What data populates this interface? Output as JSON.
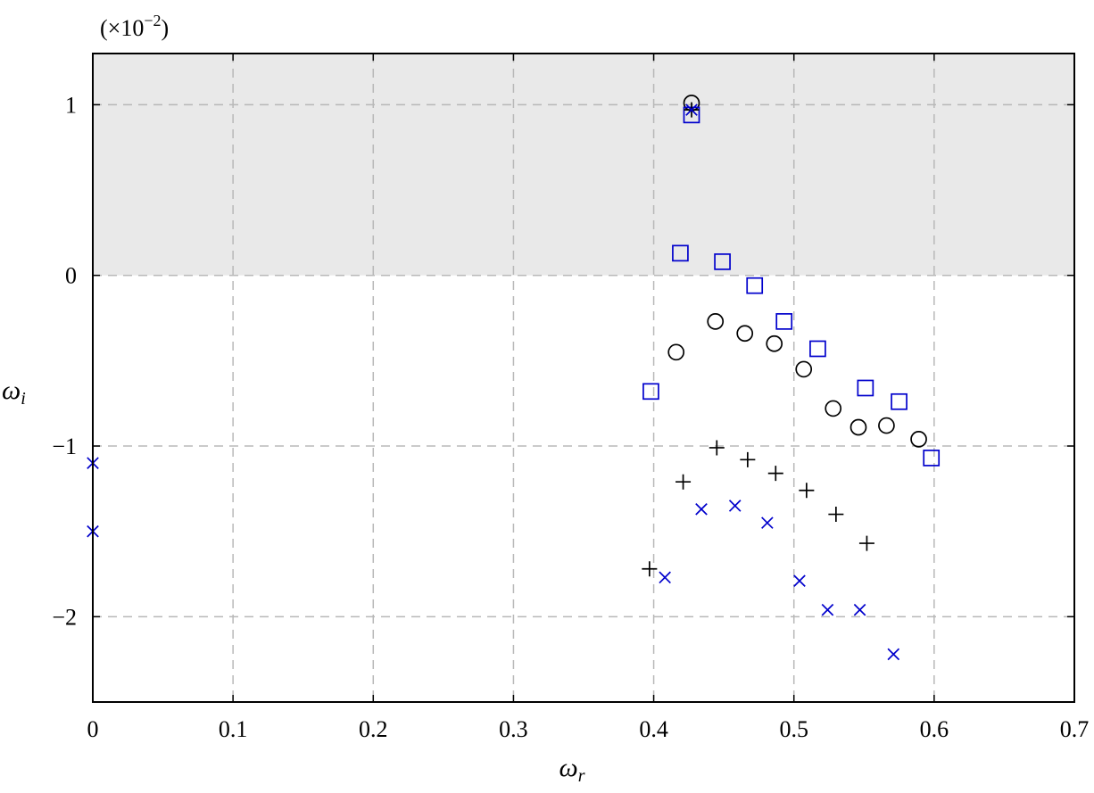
{
  "chart_data": {
    "type": "scatter",
    "xlabel": "ω",
    "xlabel_sub": "r",
    "ylabel": "ω",
    "ylabel_sub": "i",
    "y_multiplier_text": "(×10",
    "y_multiplier_exp": "−2",
    "y_multiplier_close": ")",
    "xlim": [
      0,
      0.7
    ],
    "ylim": [
      -2.5,
      1.3
    ],
    "xticks": [
      0,
      0.1,
      0.2,
      0.3,
      0.4,
      0.5,
      0.6,
      0.7
    ],
    "xtick_labels": [
      "0",
      "0.1",
      "0.2",
      "0.3",
      "0.4",
      "0.5",
      "0.6",
      "0.7"
    ],
    "yticks": [
      -2,
      -1,
      0,
      1
    ],
    "ytick_labels": [
      "−2",
      "−1",
      "0",
      "1"
    ],
    "grid": true,
    "shaded_region": {
      "y_from": 0,
      "y_to": 1.3,
      "color": "#e9e9e9"
    },
    "series": [
      {
        "marker": "circle",
        "color": "#000000",
        "points": [
          [
            0.427,
            1.01
          ],
          [
            0.416,
            -0.45
          ],
          [
            0.444,
            -0.27
          ],
          [
            0.465,
            -0.34
          ],
          [
            0.486,
            -0.4
          ],
          [
            0.507,
            -0.55
          ],
          [
            0.528,
            -0.78
          ],
          [
            0.546,
            -0.89
          ],
          [
            0.566,
            -0.88
          ],
          [
            0.589,
            -0.96
          ]
        ]
      },
      {
        "marker": "square",
        "color": "#0000cc",
        "points": [
          [
            0.427,
            0.94
          ],
          [
            0.419,
            0.13
          ],
          [
            0.449,
            0.08
          ],
          [
            0.472,
            -0.06
          ],
          [
            0.493,
            -0.27
          ],
          [
            0.517,
            -0.43
          ],
          [
            0.551,
            -0.66
          ],
          [
            0.575,
            -0.74
          ],
          [
            0.598,
            -1.07
          ],
          [
            0.398,
            -0.68
          ]
        ]
      },
      {
        "marker": "plus",
        "color": "#000000",
        "points": [
          [
            0.427,
            0.97
          ],
          [
            0.397,
            -1.72
          ],
          [
            0.421,
            -1.21
          ],
          [
            0.445,
            -1.01
          ],
          [
            0.467,
            -1.08
          ],
          [
            0.487,
            -1.16
          ],
          [
            0.509,
            -1.26
          ],
          [
            0.53,
            -1.4
          ],
          [
            0.552,
            -1.57
          ]
        ]
      },
      {
        "marker": "x",
        "color": "#0000cc",
        "points": [
          [
            0.427,
            0.97
          ],
          [
            0.0,
            -1.1
          ],
          [
            0.0,
            -1.5
          ],
          [
            0.408,
            -1.77
          ],
          [
            0.434,
            -1.37
          ],
          [
            0.458,
            -1.35
          ],
          [
            0.481,
            -1.45
          ],
          [
            0.504,
            -1.79
          ],
          [
            0.524,
            -1.96
          ],
          [
            0.547,
            -1.96
          ],
          [
            0.571,
            -2.22
          ]
        ]
      }
    ]
  }
}
